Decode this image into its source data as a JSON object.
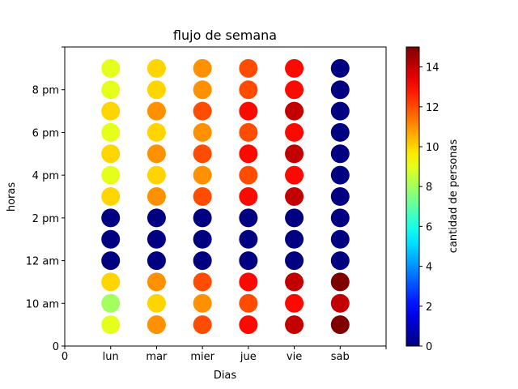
{
  "chart_data": {
    "type": "scatter",
    "title": "flujo de semana",
    "xlabel": "Dias",
    "ylabel": "horas",
    "colorbar_label": "cantidad de personas",
    "colormap": "jet",
    "color_range": [
      0,
      15
    ],
    "colorbar_ticks": [
      "0",
      "2",
      "4",
      "6",
      "8",
      "10",
      "12",
      "14"
    ],
    "colorbar_tick_values": [
      0,
      2,
      4,
      6,
      8,
      10,
      12,
      14
    ],
    "x_ticks": [
      "0",
      "lun",
      "mar",
      "mier",
      "jue",
      "vie",
      "sab",
      ""
    ],
    "x_tick_values": [
      0,
      1,
      2,
      3,
      4,
      5,
      6,
      7
    ],
    "xlim": [
      0,
      7
    ],
    "y_ticks": [
      "0",
      "10 am",
      "12 am",
      "2 pm",
      "4 pm",
      "6 pm",
      "8 pm",
      ""
    ],
    "y_tick_values": [
      0,
      2,
      4,
      6,
      8,
      10,
      12,
      14
    ],
    "ylim": [
      0,
      14
    ],
    "grid": false,
    "days": [
      "lun",
      "mar",
      "mier",
      "jue",
      "vie",
      "sab"
    ],
    "hours": [
      1,
      2,
      3,
      4,
      5,
      6,
      7,
      8,
      9,
      10,
      11,
      12,
      13
    ],
    "values": [
      [
        9,
        11,
        12,
        13,
        14,
        15
      ],
      [
        8,
        10,
        11,
        12,
        13,
        14
      ],
      [
        10,
        11,
        12,
        13,
        14,
        15
      ],
      [
        0,
        0,
        0,
        0,
        0,
        0
      ],
      [
        0,
        0,
        0,
        0,
        0,
        0
      ],
      [
        0,
        0,
        0,
        0,
        0,
        0
      ],
      [
        10,
        11,
        12,
        13,
        14,
        0
      ],
      [
        9,
        10,
        11,
        12,
        13,
        0
      ],
      [
        10,
        11,
        12,
        13,
        14,
        0
      ],
      [
        9,
        10,
        11,
        12,
        13,
        0
      ],
      [
        10,
        11,
        12,
        13,
        14,
        0
      ],
      [
        9,
        10,
        11,
        12,
        13,
        0
      ],
      [
        9,
        10,
        11,
        12,
        13,
        0
      ]
    ]
  }
}
